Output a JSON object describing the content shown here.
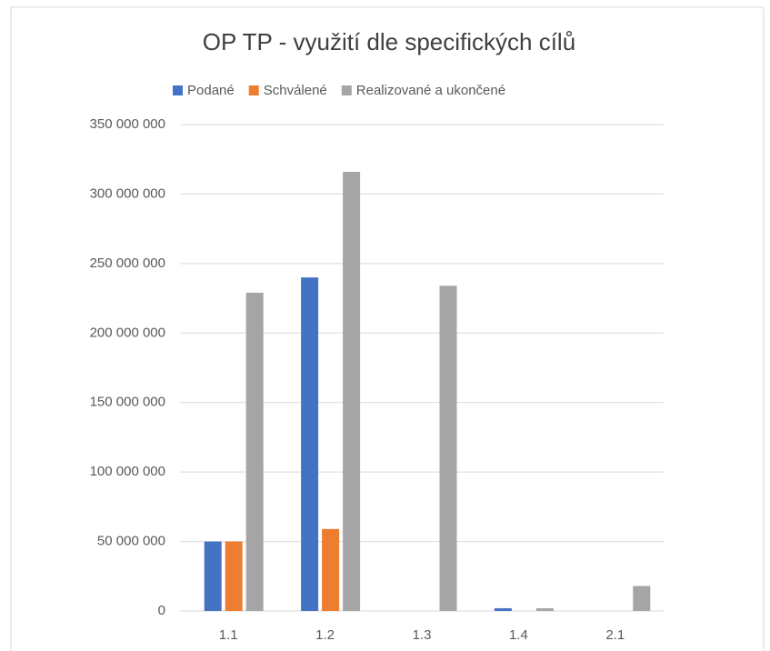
{
  "chart_data": {
    "type": "bar",
    "title": "OP TP - využití dle specifických cílů",
    "categories": [
      "1.1",
      "1.2",
      "1.3",
      "1.4",
      "2.1"
    ],
    "series": [
      {
        "name": "Podané",
        "color": "#4472c4",
        "values": [
          50000000,
          240000000,
          0,
          2000000,
          0
        ]
      },
      {
        "name": "Schválené",
        "color": "#ed7d31",
        "values": [
          50000000,
          59000000,
          0,
          0,
          0
        ]
      },
      {
        "name": "Realizované a ukončené",
        "color": "#a5a5a5",
        "values": [
          229000000,
          316000000,
          234000000,
          2000000,
          18000000
        ]
      }
    ],
    "ylim": [
      0,
      350000000
    ],
    "yticks": [
      {
        "value": 0,
        "label": "0"
      },
      {
        "value": 50000000,
        "label": "50 000 000"
      },
      {
        "value": 100000000,
        "label": "100 000 000"
      },
      {
        "value": 150000000,
        "label": "150 000 000"
      },
      {
        "value": 200000000,
        "label": "200 000 000"
      },
      {
        "value": 250000000,
        "label": "250 000 000"
      },
      {
        "value": 300000000,
        "label": "300 000 000"
      },
      {
        "value": 350000000,
        "label": "350 000 000"
      }
    ],
    "grid": true,
    "legend": "top"
  }
}
